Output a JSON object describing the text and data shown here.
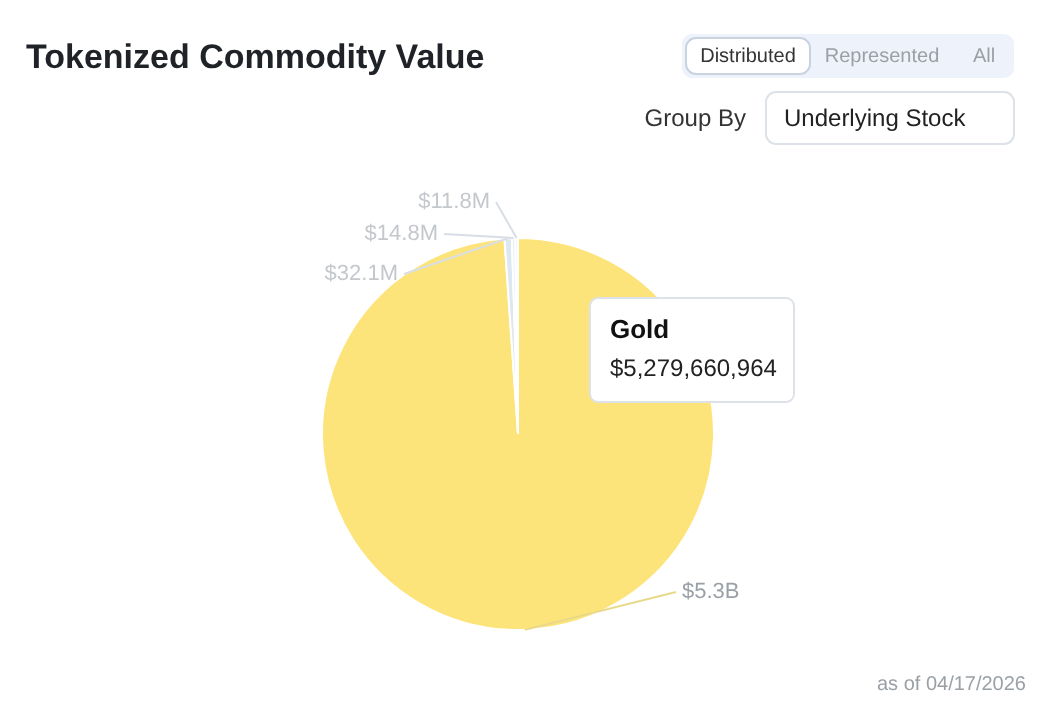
{
  "chart_data": {
    "type": "pie",
    "title": "Tokenized Commodity Value",
    "categories": [
      "Gold",
      null,
      null,
      null
    ],
    "values": [
      5279660964,
      32100000,
      14800000,
      11800000
    ],
    "colors": [
      "#fde47a",
      "#dde7f2",
      "#e6edf5",
      "#eef2f7"
    ],
    "value_labels": [
      "$5.3B",
      "$32.1M",
      "$14.8M",
      "$11.8M"
    ],
    "annotations": [
      "Distributed",
      "Represented",
      "All",
      "Group By",
      "Underlying Stock",
      "$5,279,660,964",
      "as of 04/17/2026"
    ]
  }
}
